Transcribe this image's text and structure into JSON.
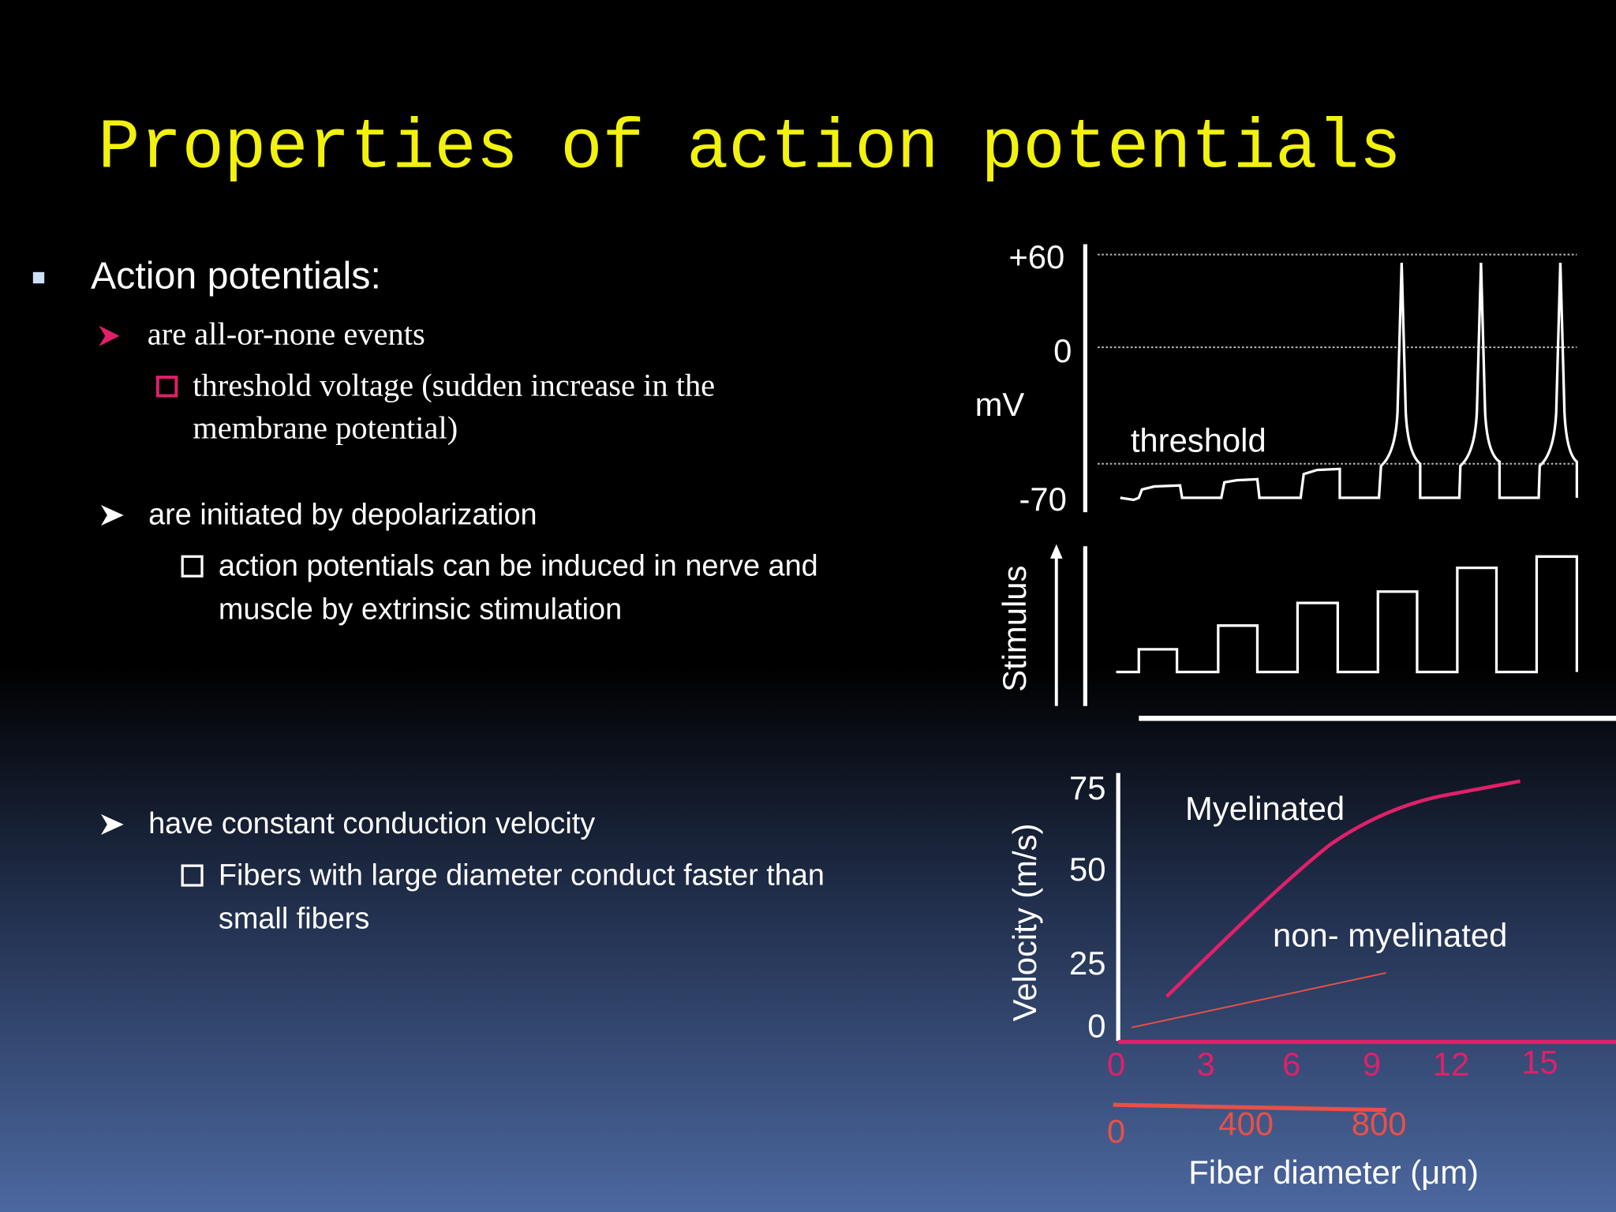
{
  "title": "Properties of action potentials",
  "bullets": {
    "main": "Action potentials:",
    "items": [
      {
        "text": "are all-or-none events",
        "sub": [
          "threshold voltage (sudden increase in the",
          "membrane potential)"
        ]
      },
      {
        "text": "are initiated by depolarization",
        "sub": [
          "action potentials can be induced in nerve and",
          "muscle by extrinsic stimulation"
        ]
      },
      {
        "text": "have constant conduction velocity",
        "sub": [
          "Fibers with large diameter conduct faster than",
          "small fibers"
        ]
      }
    ]
  },
  "figure": {
    "voltage": {
      "ticks": [
        "+60",
        "0",
        "-70"
      ],
      "unit": "mV",
      "threshold": "threshold"
    },
    "stimulus": {
      "label": "Stimulus"
    },
    "velocity": {
      "y_label": "Velocity (m/s)",
      "yticks": [
        75,
        50,
        25,
        0
      ],
      "xticks_myelinated": [
        0,
        3,
        6,
        9,
        12,
        15
      ],
      "xticks_nonmyelinated": [
        0,
        400,
        800
      ],
      "x_label": "Fiber diameter (μm)",
      "myelinated": "Myelinated",
      "non_myelinated": "non- myelinated"
    }
  }
}
